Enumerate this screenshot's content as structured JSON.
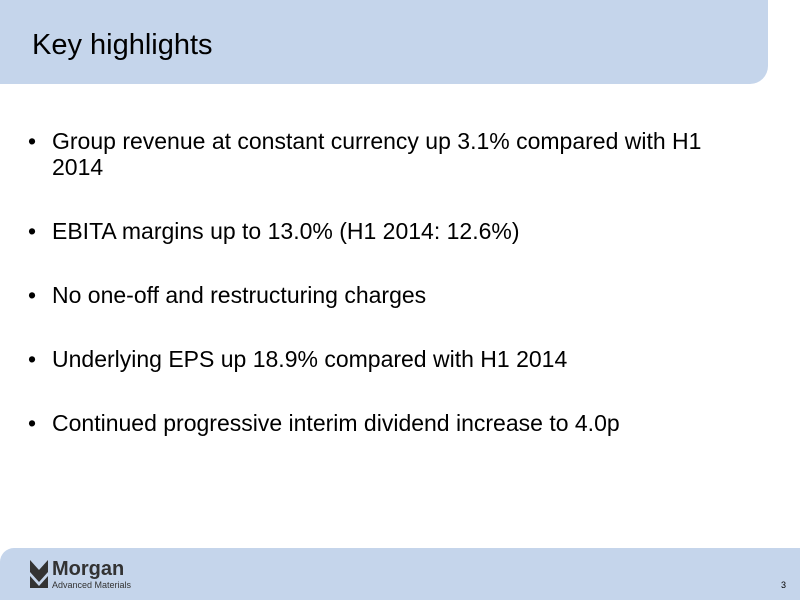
{
  "header": {
    "title": "Key highlights"
  },
  "bullets": [
    "Group revenue at constant currency up 3.1% compared with H1 2014",
    "EBITA margins up to 13.0% (H1 2014: 12.6%)",
    "No one-off and restructuring charges",
    "Underlying EPS up 18.9% compared with H1 2014",
    "Continued progressive interim dividend increase to 4.0p"
  ],
  "footer": {
    "logo_name": "Morgan",
    "logo_tagline": "Advanced Materials",
    "page_number": "3"
  }
}
